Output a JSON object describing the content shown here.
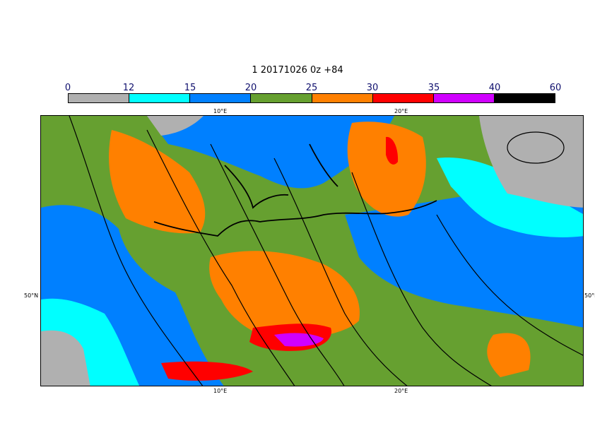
{
  "title": "1 20171026 0z +84",
  "legend": {
    "labels": [
      "0",
      "12",
      "15",
      "20",
      "25",
      "30",
      "35",
      "40",
      "60"
    ],
    "colors": [
      "#b0b0b0",
      "#00ffff",
      "#0080ff",
      "#66a030",
      "#ff8000",
      "#ff0000",
      "#d000ff",
      "#000000"
    ]
  },
  "axes": {
    "lon_top": [
      "10°E",
      "20°E"
    ],
    "lon_bottom": [
      "10°E",
      "20°E"
    ],
    "lat_left": "50°N",
    "lat_right": "50°N"
  }
}
